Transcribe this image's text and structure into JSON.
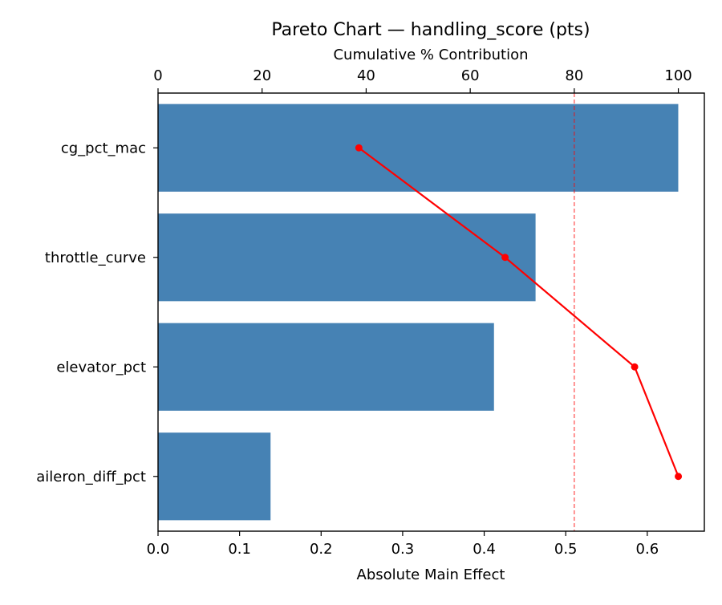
{
  "chart_data": {
    "type": "bar",
    "orientation": "horizontal",
    "title": "Pareto Chart — handling_score (pts)",
    "xlabel": "Absolute Main Effect",
    "x2label": "Cumulative % Contribution",
    "categories": [
      "cg_pct_mac",
      "throttle_curve",
      "elevator_pct",
      "aileron_diff_pct"
    ],
    "series": [
      {
        "name": "Absolute Main Effect",
        "type": "bar",
        "color": "#4682b4",
        "values": [
          0.638,
          0.463,
          0.412,
          0.138
        ]
      },
      {
        "name": "Cumulative % Contribution",
        "type": "line",
        "color": "#ff0000",
        "axis": "top",
        "values": [
          38.6,
          66.7,
          91.6,
          100.0
        ]
      }
    ],
    "reference_line": {
      "axis": "top",
      "value": 80,
      "style": "dashed",
      "color": "#ff0000"
    },
    "xlim": [
      0,
      0.67
    ],
    "x2lim": [
      0,
      105
    ],
    "xticks": [
      "0.0",
      "0.1",
      "0.2",
      "0.3",
      "0.4",
      "0.5",
      "0.6"
    ],
    "x2ticks": [
      "0",
      "20",
      "40",
      "60",
      "80",
      "100"
    ],
    "grid": false,
    "legend": null
  }
}
